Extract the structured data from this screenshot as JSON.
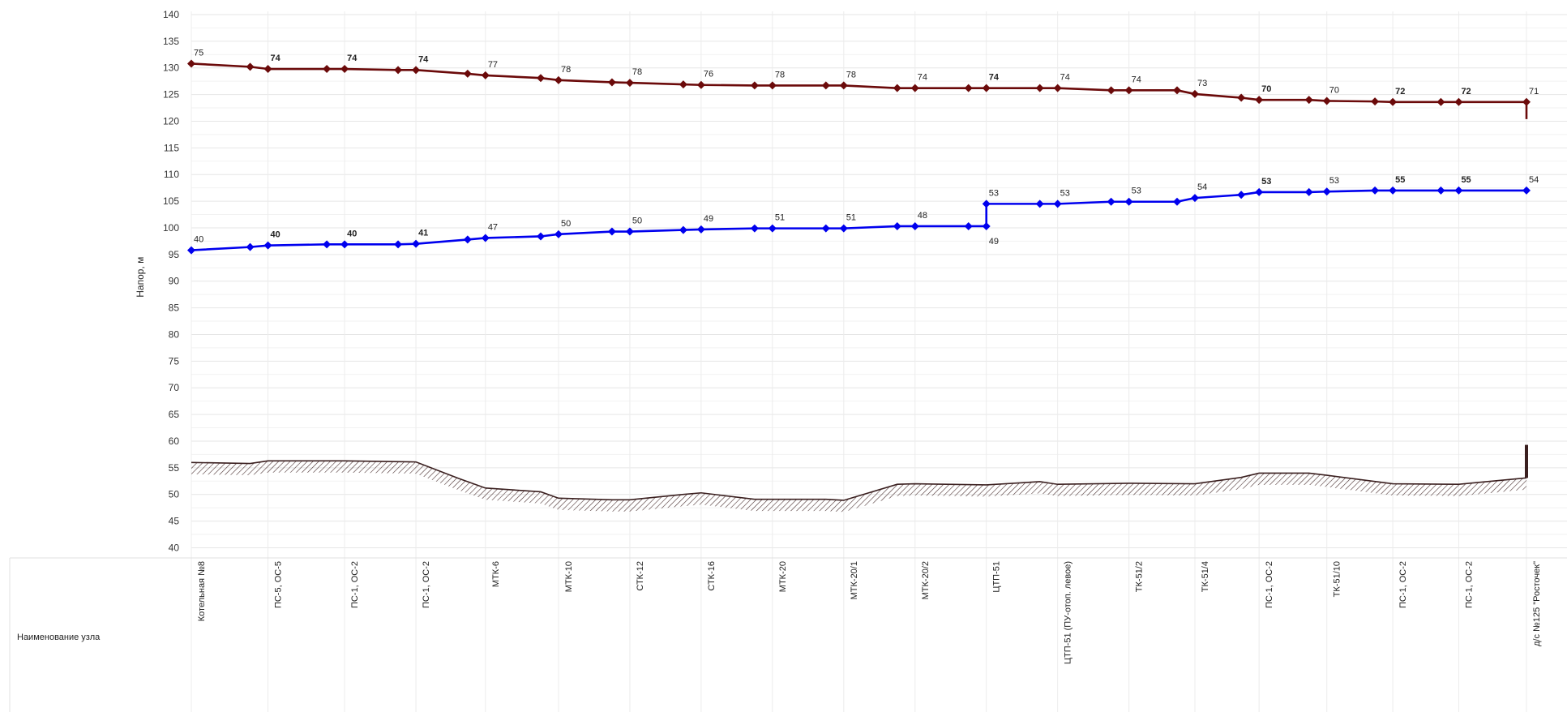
{
  "chart_data": {
    "type": "line",
    "ylabel": "Напор, м",
    "ylim": [
      40,
      140
    ],
    "ytick_step": 5,
    "grid": true,
    "row_label": "Наименование узла",
    "nodes": [
      {
        "x": 0,
        "label": "Котельная №8"
      },
      {
        "x": 4.3,
        "label": "ПС-5, ОС-5"
      },
      {
        "x": 8.6,
        "label": "ПС-1, ОС-2"
      },
      {
        "x": 12.6,
        "label": "ПС-1, ОС-2"
      },
      {
        "x": 16.5,
        "label": "МТК-6"
      },
      {
        "x": 20.6,
        "label": "МТК-10"
      },
      {
        "x": 24.6,
        "label": "СТК-12"
      },
      {
        "x": 28.6,
        "label": "СТК-16"
      },
      {
        "x": 32.6,
        "label": "МТК-20"
      },
      {
        "x": 36.6,
        "label": "МТК-20/1"
      },
      {
        "x": 40.6,
        "label": "МТК-20/2"
      },
      {
        "x": 44.6,
        "label": "ЦТП-51"
      },
      {
        "x": 48.6,
        "label": "ЦТП-51 (ПУ-отоп. левое)"
      },
      {
        "x": 52.6,
        "label": "ТК-51/2"
      },
      {
        "x": 56.3,
        "label": "ТК-51/4"
      },
      {
        "x": 59.9,
        "label": "ПС-1, ОС-2"
      },
      {
        "x": 63.7,
        "label": "ТК-51/10"
      },
      {
        "x": 67.4,
        "label": "ПС-1, ОС-2"
      },
      {
        "x": 71.1,
        "label": "ПС-1, ОС-2"
      },
      {
        "x": 74.9,
        "label": "д/с №125 \"Росточек\""
      }
    ],
    "series": [
      {
        "color": "#6b0a0a",
        "values": [
          [
            0,
            130.8
          ],
          [
            3.3,
            130.2
          ],
          [
            4.3,
            129.8
          ],
          [
            7.6,
            129.8
          ],
          [
            8.6,
            129.8
          ],
          [
            11.6,
            129.6
          ],
          [
            12.6,
            129.6
          ],
          [
            15.5,
            128.9
          ],
          [
            16.5,
            128.6
          ],
          [
            19.6,
            128.1
          ],
          [
            20.6,
            127.7
          ],
          [
            23.6,
            127.3
          ],
          [
            24.6,
            127.2
          ],
          [
            27.6,
            126.9
          ],
          [
            28.6,
            126.8
          ],
          [
            31.6,
            126.7
          ],
          [
            32.6,
            126.7
          ],
          [
            35.6,
            126.7
          ],
          [
            36.6,
            126.7
          ],
          [
            39.6,
            126.2
          ],
          [
            40.6,
            126.2
          ],
          [
            43.6,
            126.2
          ],
          [
            44.6,
            126.2
          ],
          [
            47.6,
            126.2
          ],
          [
            48.6,
            126.2
          ],
          [
            51.6,
            125.8
          ],
          [
            52.6,
            125.8
          ],
          [
            55.3,
            125.8
          ],
          [
            56.3,
            125.1
          ],
          [
            58.9,
            124.4
          ],
          [
            59.9,
            124.0
          ],
          [
            62.7,
            124.0
          ],
          [
            63.7,
            123.8
          ],
          [
            66.4,
            123.7
          ],
          [
            67.4,
            123.6
          ],
          [
            70.1,
            123.6
          ],
          [
            71.1,
            123.6
          ],
          [
            74.9,
            123.6
          ],
          [
            74.9,
            120.4
          ]
        ],
        "labels": [
          {
            "x": 0,
            "y": 130.8,
            "text": "75"
          },
          {
            "x": 4.3,
            "y": 129.8,
            "text": "74",
            "bold": true
          },
          {
            "x": 8.6,
            "y": 129.8,
            "text": "74",
            "bold": true
          },
          {
            "x": 12.6,
            "y": 129.6,
            "text": "74",
            "bold": true
          },
          {
            "x": 16.5,
            "y": 128.6,
            "text": "77"
          },
          {
            "x": 20.6,
            "y": 127.7,
            "text": "78"
          },
          {
            "x": 24.6,
            "y": 127.2,
            "text": "78"
          },
          {
            "x": 28.6,
            "y": 126.8,
            "text": "76"
          },
          {
            "x": 32.6,
            "y": 126.7,
            "text": "78"
          },
          {
            "x": 36.6,
            "y": 126.7,
            "text": "78"
          },
          {
            "x": 40.6,
            "y": 126.2,
            "text": "74"
          },
          {
            "x": 44.6,
            "y": 126.2,
            "text": "74",
            "bold": true
          },
          {
            "x": 48.6,
            "y": 126.2,
            "text": "74"
          },
          {
            "x": 52.6,
            "y": 125.8,
            "text": "74"
          },
          {
            "x": 56.3,
            "y": 125.1,
            "text": "73"
          },
          {
            "x": 59.9,
            "y": 124.0,
            "text": "70",
            "bold": true
          },
          {
            "x": 63.7,
            "y": 123.8,
            "text": "70"
          },
          {
            "x": 67.4,
            "y": 123.6,
            "text": "72",
            "bold": true
          },
          {
            "x": 71.1,
            "y": 123.6,
            "text": "72",
            "bold": true
          },
          {
            "x": 74.9,
            "y": 123.6,
            "text": "71"
          }
        ]
      },
      {
        "color": "#0000ee",
        "values": [
          [
            0,
            95.8
          ],
          [
            3.3,
            96.4
          ],
          [
            4.3,
            96.7
          ],
          [
            7.6,
            96.9
          ],
          [
            8.6,
            96.9
          ],
          [
            11.6,
            96.9
          ],
          [
            12.6,
            97.0
          ],
          [
            15.5,
            97.8
          ],
          [
            16.5,
            98.1
          ],
          [
            19.6,
            98.4
          ],
          [
            20.6,
            98.8
          ],
          [
            23.6,
            99.3
          ],
          [
            24.6,
            99.3
          ],
          [
            27.6,
            99.6
          ],
          [
            28.6,
            99.7
          ],
          [
            31.6,
            99.9
          ],
          [
            32.6,
            99.9
          ],
          [
            35.6,
            99.9
          ],
          [
            36.6,
            99.9
          ],
          [
            39.6,
            100.3
          ],
          [
            40.6,
            100.3
          ],
          [
            43.6,
            100.3
          ],
          [
            44.6,
            100.3
          ],
          [
            44.6,
            104.5
          ],
          [
            47.6,
            104.5
          ],
          [
            48.6,
            104.5
          ],
          [
            51.6,
            104.9
          ],
          [
            52.6,
            104.9
          ],
          [
            55.3,
            104.9
          ],
          [
            56.3,
            105.6
          ],
          [
            58.9,
            106.2
          ],
          [
            59.9,
            106.7
          ],
          [
            62.7,
            106.7
          ],
          [
            63.7,
            106.8
          ],
          [
            66.4,
            107.0
          ],
          [
            67.4,
            107.0
          ],
          [
            70.1,
            107.0
          ],
          [
            71.1,
            107.0
          ],
          [
            74.9,
            107.0
          ]
        ],
        "labels": [
          {
            "x": 0,
            "y": 95.8,
            "text": "40"
          },
          {
            "x": 4.3,
            "y": 96.7,
            "text": "40",
            "bold": true
          },
          {
            "x": 8.6,
            "y": 96.9,
            "text": "40",
            "bold": true
          },
          {
            "x": 12.6,
            "y": 97.0,
            "text": "41",
            "bold": true
          },
          {
            "x": 16.5,
            "y": 98.1,
            "text": "47"
          },
          {
            "x": 20.6,
            "y": 98.8,
            "text": "50"
          },
          {
            "x": 24.6,
            "y": 99.3,
            "text": "50"
          },
          {
            "x": 28.6,
            "y": 99.7,
            "text": "49"
          },
          {
            "x": 32.6,
            "y": 99.9,
            "text": "51"
          },
          {
            "x": 36.6,
            "y": 99.9,
            "text": "51"
          },
          {
            "x": 40.6,
            "y": 100.3,
            "text": "48"
          },
          {
            "x": 44.6,
            "y": 100.3,
            "text": "49",
            "below": true
          },
          {
            "x": 44.6,
            "y": 104.5,
            "text": "53"
          },
          {
            "x": 48.6,
            "y": 104.5,
            "text": "53"
          },
          {
            "x": 52.6,
            "y": 104.9,
            "text": "53"
          },
          {
            "x": 56.3,
            "y": 105.6,
            "text": "54"
          },
          {
            "x": 59.9,
            "y": 106.7,
            "text": "53",
            "bold": true
          },
          {
            "x": 63.7,
            "y": 106.8,
            "text": "53"
          },
          {
            "x": 67.4,
            "y": 107.0,
            "text": "55",
            "bold": true
          },
          {
            "x": 71.1,
            "y": 107.0,
            "text": "55",
            "bold": true
          },
          {
            "x": 74.9,
            "y": 107.0,
            "text": "54"
          }
        ]
      }
    ],
    "terrain": {
      "color": "#3a1f1f",
      "values": [
        [
          0,
          56.0
        ],
        [
          3.3,
          55.8
        ],
        [
          4.3,
          56.3
        ],
        [
          8.6,
          56.3
        ],
        [
          12.6,
          56.1
        ],
        [
          15.0,
          53.0
        ],
        [
          16.5,
          51.2
        ],
        [
          19.6,
          50.5
        ],
        [
          20.6,
          49.3
        ],
        [
          23.6,
          49.0
        ],
        [
          24.6,
          49.0
        ],
        [
          27.6,
          50.0
        ],
        [
          28.6,
          50.3
        ],
        [
          31.6,
          49.1
        ],
        [
          32.6,
          49.1
        ],
        [
          35.6,
          49.1
        ],
        [
          36.6,
          48.9
        ],
        [
          39.6,
          51.9
        ],
        [
          40.6,
          52.0
        ],
        [
          44.6,
          51.8
        ],
        [
          47.6,
          52.4
        ],
        [
          48.6,
          51.9
        ],
        [
          52.6,
          52.1
        ],
        [
          56.3,
          52.0
        ],
        [
          58.9,
          53.2
        ],
        [
          59.9,
          54.0
        ],
        [
          62.7,
          54.0
        ],
        [
          63.7,
          53.6
        ],
        [
          67.4,
          52.0
        ],
        [
          71.1,
          51.9
        ],
        [
          74.9,
          53.1
        ]
      ],
      "hatch_depth": 2.2
    },
    "source_marker": {
      "x": 74.9,
      "y_from": 53.1,
      "y_to": 59.3,
      "color": "#3a1f1f"
    }
  }
}
